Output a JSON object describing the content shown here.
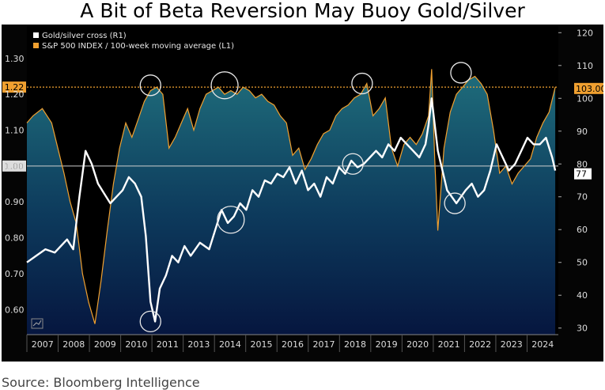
{
  "title": "A Bit of Beta Reversion May Buoy Gold/Silver",
  "source": "Source: Bloomberg Intelligence",
  "chart_data": {
    "type": "line",
    "title": "A Bit of Beta Reversion May Buoy Gold/Silver",
    "x_ticks": [
      "2007",
      "2008",
      "2009",
      "2010",
      "2011",
      "2013",
      "2014",
      "2015",
      "2016",
      "2017",
      "2018",
      "2019",
      "2020",
      "2021",
      "2022",
      "2023",
      "2024"
    ],
    "xlim": [
      2007.0,
      2024.2
    ],
    "left_axis": {
      "ticks": [
        "0.60",
        "0.70",
        "0.80",
        "0.90",
        "1.00",
        "1.10",
        "1.20",
        "1.30"
      ],
      "ylim": [
        0.53,
        1.39
      ]
    },
    "right_axis": {
      "ticks": [
        "30",
        "40",
        "50",
        "60",
        "70",
        "80",
        "90",
        "100",
        "110",
        "120"
      ],
      "ylim": [
        28,
        122
      ]
    },
    "reference_lines": [
      {
        "axis": "left",
        "value": 1.22,
        "label": "1.22",
        "color": "#f0a030",
        "style": "dotted"
      },
      {
        "axis": "left",
        "value": 1.0,
        "label": "1.00",
        "color": "#cccccc",
        "style": "solid"
      }
    ],
    "end_labels": [
      {
        "axis": "right",
        "value": 103.0,
        "label": "103.00",
        "color": "#f0a030"
      },
      {
        "axis": "right",
        "value": 77,
        "label": "77",
        "color": "#ffffff"
      }
    ],
    "series": [
      {
        "name": "Gold/silver cross (R1)",
        "axis": "right",
        "color": "#ffffff",
        "x": [
          2007.0,
          2007.3,
          2007.6,
          2007.9,
          2008.1,
          2008.3,
          2008.5,
          2008.7,
          2008.9,
          2009.1,
          2009.3,
          2009.5,
          2009.7,
          2009.9,
          2010.1,
          2010.3,
          2010.5,
          2010.7,
          2010.85,
          2011.0,
          2011.15,
          2011.3,
          2011.5,
          2011.7,
          2011.9,
          2012.1,
          2012.3,
          2012.6,
          2012.9,
          2013.1,
          2013.3,
          2013.5,
          2013.7,
          2013.9,
          2014.1,
          2014.3,
          2014.5,
          2014.7,
          2014.9,
          2015.1,
          2015.3,
          2015.5,
          2015.7,
          2015.9,
          2016.1,
          2016.3,
          2016.5,
          2016.7,
          2016.9,
          2017.1,
          2017.3,
          2017.5,
          2017.7,
          2017.9,
          2018.1,
          2018.3,
          2018.5,
          2018.7,
          2018.9,
          2019.1,
          2019.3,
          2019.5,
          2019.7,
          2019.9,
          2020.0,
          2020.1,
          2020.2,
          2020.3,
          2020.45,
          2020.6,
          2020.75,
          2020.9,
          2021.05,
          2021.2,
          2021.4,
          2021.6,
          2021.8,
          2022.0,
          2022.2,
          2022.4,
          2022.6,
          2022.8,
          2023.0,
          2023.2,
          2023.4,
          2023.6,
          2023.8,
          2024.0,
          2024.1
        ],
        "y": [
          50,
          52,
          54,
          53,
          55,
          57,
          54,
          70,
          84,
          80,
          74,
          71,
          68,
          70,
          72,
          76,
          74,
          70,
          58,
          38,
          32,
          42,
          46,
          52,
          50,
          55,
          52,
          56,
          54,
          60,
          66,
          62,
          64,
          68,
          66,
          72,
          70,
          75,
          74,
          77,
          76,
          79,
          74,
          78,
          72,
          74,
          70,
          76,
          74,
          79,
          77,
          81,
          79,
          80,
          82,
          84,
          82,
          86,
          84,
          88,
          86,
          84,
          82,
          86,
          92,
          100,
          92,
          84,
          78,
          72,
          70,
          68,
          70,
          72,
          74,
          70,
          72,
          78,
          86,
          82,
          78,
          80,
          84,
          88,
          86,
          86,
          88,
          82,
          78
        ]
      },
      {
        "name": "S&P 500 INDEX / 100-week moving average (L1)",
        "axis": "left",
        "color": "#f0a030",
        "x": [
          2007.0,
          2007.2,
          2007.5,
          2007.8,
          2008.0,
          2008.2,
          2008.4,
          2008.6,
          2008.8,
          2009.0,
          2009.2,
          2009.4,
          2009.6,
          2009.8,
          2010.0,
          2010.2,
          2010.4,
          2010.6,
          2010.8,
          2011.0,
          2011.2,
          2011.4,
          2011.6,
          2011.8,
          2012.0,
          2012.2,
          2012.4,
          2012.6,
          2012.8,
          2013.0,
          2013.2,
          2013.4,
          2013.6,
          2013.8,
          2014.0,
          2014.2,
          2014.4,
          2014.6,
          2014.8,
          2015.0,
          2015.2,
          2015.4,
          2015.6,
          2015.8,
          2016.0,
          2016.2,
          2016.4,
          2016.6,
          2016.8,
          2017.0,
          2017.2,
          2017.4,
          2017.6,
          2017.8,
          2018.0,
          2018.2,
          2018.4,
          2018.6,
          2018.8,
          2019.0,
          2019.2,
          2019.4,
          2019.6,
          2019.8,
          2020.0,
          2020.1,
          2020.2,
          2020.3,
          2020.5,
          2020.7,
          2020.9,
          2021.1,
          2021.3,
          2021.5,
          2021.7,
          2021.9,
          2022.1,
          2022.3,
          2022.5,
          2022.7,
          2022.9,
          2023.1,
          2023.3,
          2023.5,
          2023.7,
          2023.9,
          2024.1
        ],
        "y": [
          1.12,
          1.14,
          1.16,
          1.12,
          1.05,
          0.98,
          0.9,
          0.84,
          0.7,
          0.62,
          0.56,
          0.68,
          0.82,
          0.95,
          1.05,
          1.12,
          1.08,
          1.13,
          1.18,
          1.21,
          1.22,
          1.2,
          1.05,
          1.08,
          1.12,
          1.16,
          1.1,
          1.16,
          1.2,
          1.21,
          1.22,
          1.2,
          1.21,
          1.2,
          1.22,
          1.21,
          1.19,
          1.2,
          1.18,
          1.17,
          1.14,
          1.12,
          1.03,
          1.05,
          0.99,
          1.02,
          1.06,
          1.09,
          1.1,
          1.14,
          1.16,
          1.17,
          1.19,
          1.2,
          1.23,
          1.14,
          1.16,
          1.19,
          1.05,
          1.0,
          1.06,
          1.08,
          1.06,
          1.09,
          1.14,
          1.27,
          1.02,
          0.82,
          1.05,
          1.15,
          1.2,
          1.22,
          1.24,
          1.25,
          1.23,
          1.2,
          1.1,
          0.98,
          1.0,
          0.95,
          0.98,
          1.0,
          1.02,
          1.08,
          1.12,
          1.15,
          1.22
        ]
      }
    ],
    "annotations": "white circles mark highlighted extremes",
    "circles": [
      {
        "x": 2011.0,
        "axis": "left",
        "y": 1.225
      },
      {
        "x": 2013.4,
        "axis": "left",
        "y": 1.225
      },
      {
        "x": 2017.85,
        "axis": "left",
        "y": 1.23
      },
      {
        "x": 2021.05,
        "axis": "left",
        "y": 1.26
      },
      {
        "x": 2011.0,
        "axis": "right",
        "y": 32
      },
      {
        "x": 2013.6,
        "axis": "right",
        "y": 63
      },
      {
        "x": 2017.55,
        "axis": "right",
        "y": 80
      },
      {
        "x": 2020.85,
        "axis": "right",
        "y": 68
      }
    ],
    "legend_placement": "top-left",
    "grid": false
  },
  "colors": {
    "background_top": "#0a0a0a",
    "fill_top": "#1e6a78",
    "fill_bottom": "#071a45",
    "orange": "#f0a030",
    "white": "#ffffff"
  }
}
